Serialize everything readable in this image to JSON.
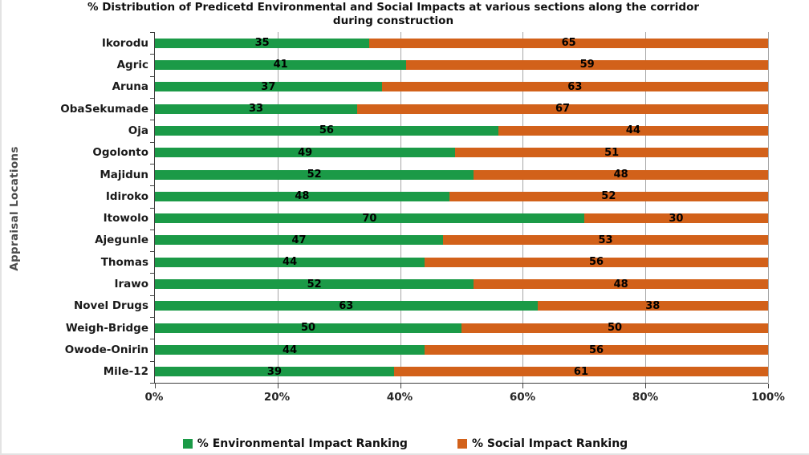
{
  "chart_data": {
    "type": "bar",
    "stacked": true,
    "orientation": "horizontal",
    "title_line1": "% Distribution of Predicetd Environmental and  Social Impacts at various sections along the corridor",
    "title_line2": "during construction",
    "ylabel": "Appraisal Locations",
    "categories": [
      "Ikorodu",
      "Agric",
      "Aruna",
      "ObaSekumade",
      "Oja",
      "Ogolonto",
      "Majidun",
      "Idiroko",
      "Itowolo",
      "Ajegunle",
      "Thomas",
      "Irawo",
      "Novel Drugs",
      "Weigh-Bridge",
      "Owode-Onirin",
      "Mile-12"
    ],
    "series": [
      {
        "name": "% Environmental Impact Ranking",
        "color": "#1B9A47",
        "values": [
          35,
          41,
          37,
          33,
          56,
          49,
          52,
          48,
          70,
          47,
          44,
          52,
          63,
          50,
          44,
          39
        ]
      },
      {
        "name": "% Social Impact Ranking",
        "color": "#D2611A",
        "values": [
          65,
          59,
          63,
          67,
          44,
          51,
          48,
          52,
          30,
          53,
          56,
          48,
          38,
          50,
          56,
          61
        ]
      }
    ],
    "xticks": [
      "0%",
      "20%",
      "40%",
      "60%",
      "80%",
      "100%"
    ],
    "xlim": [
      0,
      100
    ],
    "grid": true,
    "legend_position": "bottom",
    "colors": {
      "gridline": "#a6a6a6",
      "axis": "#404040",
      "text": "#111111"
    }
  }
}
